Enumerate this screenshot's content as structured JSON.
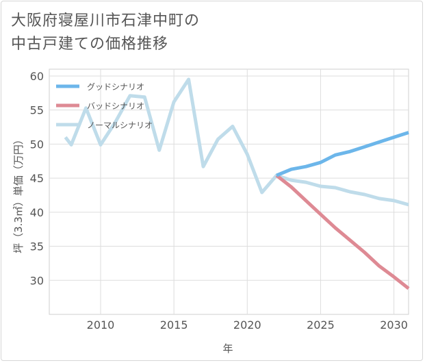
{
  "title_lines": [
    "大阪府寝屋川市石津中町の",
    "中古戸建ての価格推移"
  ],
  "chart_data": {
    "type": "line",
    "title": "大阪府寝屋川市石津中町の中古戸建ての価格推移",
    "xlabel": "年",
    "ylabel": "坪（3.3㎡）単価（万円）",
    "xlim": [
      2006.5,
      2031
    ],
    "ylim": [
      25,
      61
    ],
    "x_ticks": [
      2010,
      2015,
      2020,
      2025,
      2030
    ],
    "y_ticks": [
      30,
      35,
      40,
      45,
      50,
      55,
      60
    ],
    "grid": true,
    "legend_position": "top-left",
    "series": [
      {
        "name": "グッドシナリオ",
        "color": "#6cb6ea",
        "x": [
          2022,
          2023,
          2024,
          2025,
          2026,
          2027,
          2028,
          2029,
          2030,
          2031
        ],
        "y": [
          45.4,
          46.3,
          46.7,
          47.3,
          48.4,
          48.9,
          49.6,
          50.3,
          51.0,
          51.7
        ]
      },
      {
        "name": "バッドシナリオ",
        "color": "#de8a94",
        "x": [
          2022,
          2023,
          2024,
          2025,
          2026,
          2027,
          2028,
          2029,
          2030,
          2031
        ],
        "y": [
          45.4,
          43.7,
          41.7,
          39.7,
          37.7,
          35.9,
          34.1,
          32.1,
          30.5,
          28.8
        ]
      },
      {
        "name": "ノーマルシナリオ",
        "color": "#bfdcea",
        "x": [
          2007.6,
          2008,
          2009,
          2010,
          2011,
          2012,
          2013,
          2014,
          2015,
          2016,
          2017,
          2018,
          2019,
          2020,
          2021,
          2022,
          2023,
          2024,
          2025,
          2026,
          2027,
          2028,
          2029,
          2030,
          2031
        ],
        "y": [
          51.0,
          49.9,
          55.3,
          49.9,
          53.2,
          57.1,
          56.9,
          49.1,
          56.2,
          59.5,
          46.7,
          50.7,
          52.6,
          48.5,
          42.9,
          45.4,
          44.7,
          44.4,
          43.8,
          43.6,
          43.0,
          42.6,
          42.0,
          41.7,
          41.1
        ]
      }
    ]
  }
}
